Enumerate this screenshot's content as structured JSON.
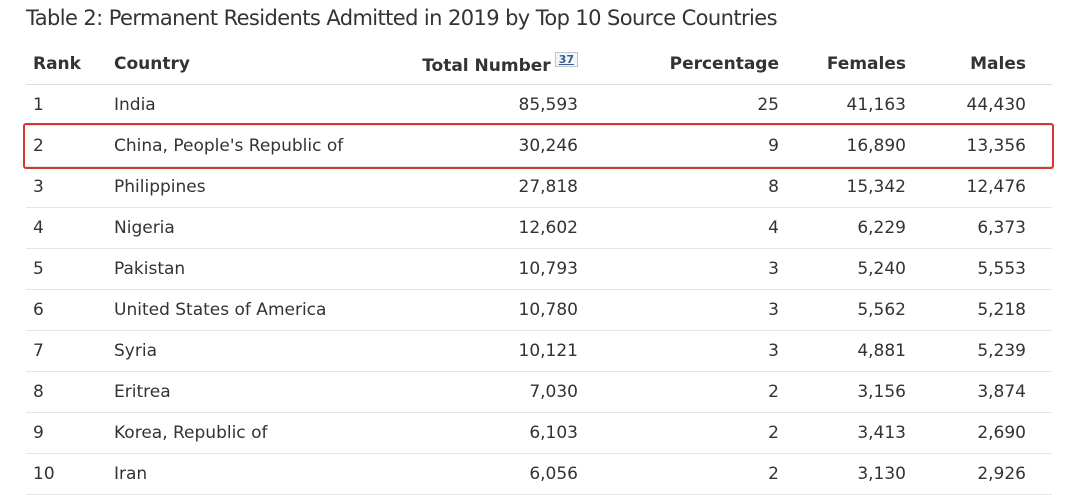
{
  "title": "Table 2: Permanent Residents Admitted in 2019 by Top 10 Source Countries",
  "columns": {
    "rank": "Rank",
    "country": "Country",
    "total": "Total Number",
    "total_footnote": "37",
    "percentage": "Percentage",
    "females": "Females",
    "males": "Males"
  },
  "rows": [
    {
      "rank": "1",
      "country": "India",
      "total": "85,593",
      "percentage": "25",
      "females": "41,163",
      "males": "44,430"
    },
    {
      "rank": "2",
      "country": "China, People's Republic of",
      "total": "30,246",
      "percentage": "9",
      "females": "16,890",
      "males": "13,356"
    },
    {
      "rank": "3",
      "country": "Philippines",
      "total": "27,818",
      "percentage": "8",
      "females": "15,342",
      "males": "12,476"
    },
    {
      "rank": "4",
      "country": "Nigeria",
      "total": "12,602",
      "percentage": "4",
      "females": "6,229",
      "males": "6,373"
    },
    {
      "rank": "5",
      "country": "Pakistan",
      "total": "10,793",
      "percentage": "3",
      "females": "5,240",
      "males": "5,553"
    },
    {
      "rank": "6",
      "country": "United States of America",
      "total": "10,780",
      "percentage": "3",
      "females": "5,562",
      "males": "5,218"
    },
    {
      "rank": "7",
      "country": "Syria",
      "total": "10,121",
      "percentage": "3",
      "females": "4,881",
      "males": "5,239"
    },
    {
      "rank": "8",
      "country": "Eritrea",
      "total": "7,030",
      "percentage": "2",
      "females": "3,156",
      "males": "3,874"
    },
    {
      "rank": "9",
      "country": "Korea, Republic of",
      "total": "6,103",
      "percentage": "2",
      "females": "3,413",
      "males": "2,690"
    },
    {
      "rank": "10",
      "country": "Iran",
      "total": "6,056",
      "percentage": "2",
      "females": "3,130",
      "males": "2,926"
    }
  ],
  "highlight_color": "#d9352f"
}
